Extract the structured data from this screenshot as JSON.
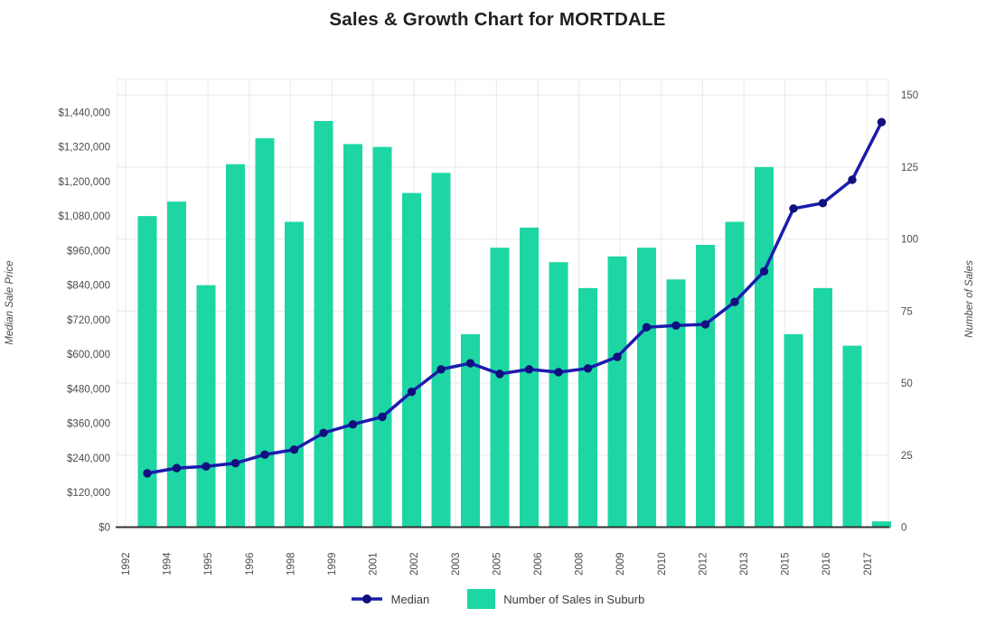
{
  "title": "Sales & Growth Chart for MORTDALE",
  "left_axis": {
    "title": "Median Sale Price",
    "tick_labels": [
      "$0",
      "$120,000",
      "$240,000",
      "$360,000",
      "$480,000",
      "$600,000",
      "$720,000",
      "$840,000",
      "$960,000",
      "$1,080,000",
      "$1,200,000",
      "$1,320,000",
      "$1,440,000"
    ],
    "tick_values": [
      0,
      120000,
      240000,
      360000,
      480000,
      600000,
      720000,
      840000,
      960000,
      1080000,
      1200000,
      1320000,
      1440000
    ]
  },
  "right_axis": {
    "title": "Number of Sales",
    "tick_labels": [
      "0",
      "25",
      "50",
      "75",
      "100",
      "125",
      "150"
    ],
    "tick_values": [
      0,
      25,
      50,
      75,
      100,
      125,
      150
    ]
  },
  "x_axis": {
    "tick_labels": [
      "1992",
      "1994",
      "1995",
      "1996",
      "1998",
      "1999",
      "2001",
      "2002",
      "2003",
      "2005",
      "2006",
      "2008",
      "2009",
      "2010",
      "2012",
      "2013",
      "2015",
      "2016",
      "2017"
    ]
  },
  "legend": {
    "items": [
      {
        "label": "Median",
        "marker": "line-dot"
      },
      {
        "label": "Number of Sales in Suburb",
        "marker": "square"
      }
    ]
  },
  "colors": {
    "bar": "#1DD6A3",
    "line": "#1C1CAE",
    "marker": "#10107E",
    "grid": "#E9E9E9",
    "axis_line": "#333333",
    "tick_text": "#4D4D4D",
    "title_text": "#1F1F1F",
    "legend_text": "#3B3B3B",
    "axis_title_text": "#4D4D4D",
    "background": "#FFFFFF"
  },
  "chart_data": {
    "type": "combo",
    "categories": [
      "1992",
      "1993",
      "1994",
      "1995",
      "1996",
      "1997",
      "1998",
      "1999",
      "2000",
      "2001",
      "2002",
      "2003",
      "2004",
      "2005",
      "2006",
      "2007",
      "2008",
      "2009",
      "2010",
      "2011",
      "2012",
      "2013",
      "2014",
      "2015",
      "2016",
      "2017"
    ],
    "series": [
      {
        "name": "Number of Sales in Suburb",
        "type": "bar",
        "axis": "right",
        "values": [
          108,
          113,
          84,
          126,
          135,
          106,
          141,
          133,
          132,
          116,
          123,
          67,
          97,
          104,
          92,
          83,
          94,
          97,
          86,
          98,
          106,
          125,
          67,
          83,
          63,
          2
        ]
      },
      {
        "name": "Median",
        "type": "line",
        "axis": "left",
        "values": [
          187000,
          205000,
          211000,
          222000,
          252000,
          269000,
          327000,
          357000,
          383000,
          470000,
          548000,
          569000,
          532000,
          548000,
          538000,
          551000,
          591000,
          694000,
          700000,
          704000,
          782000,
          888000,
          1106000,
          1125000,
          1206000,
          1406000
        ]
      }
    ],
    "title": "Sales & Growth Chart for MORTDALE",
    "xlabel": "",
    "ylabel_left": "Median Sale Price",
    "ylabel_right": "Number of Sales",
    "ylim_left": [
      0,
      1554000
    ],
    "ylim_right": [
      0,
      155.4
    ],
    "grid": true,
    "legend_position": "bottom",
    "x_tick_labels_shown": [
      "1992",
      "1994",
      "1995",
      "1996",
      "1998",
      "1999",
      "2001",
      "2002",
      "2003",
      "2005",
      "2006",
      "2008",
      "2009",
      "2010",
      "2012",
      "2013",
      "2015",
      "2016",
      "2017"
    ]
  }
}
